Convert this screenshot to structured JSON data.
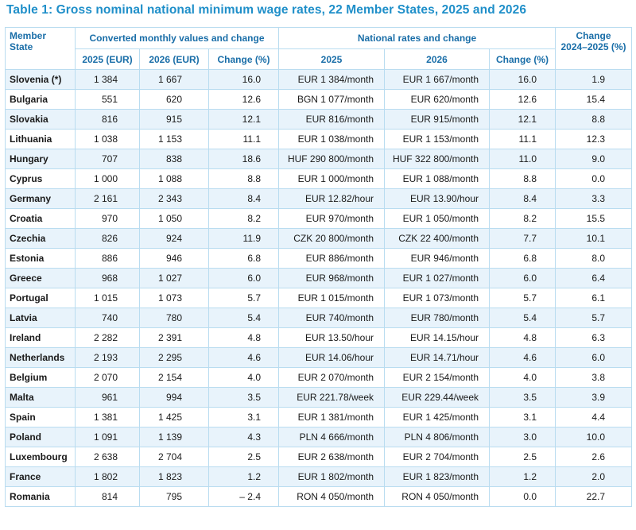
{
  "title": "Table 1: Gross nominal national minimum wage rates, 22 Member States, 2025 and 2026",
  "headers": {
    "member_state": "Member\nState",
    "group_converted": "Converted monthly values and change",
    "group_national": "National rates and change",
    "change_2024_2025": "Change\n2024–2025 (%)",
    "sub": [
      "2025 (EUR)",
      "2026 (EUR)",
      "Change (%)",
      "2025",
      "2026",
      "Change (%)"
    ]
  },
  "rows": [
    [
      "Slovenia (*)",
      "1 384",
      "1 667",
      "16.0",
      "EUR 1 384/month",
      "EUR 1 667/month",
      "16.0",
      "1.9"
    ],
    [
      "Bulgaria",
      "551",
      "620",
      "12.6",
      "BGN 1 077/month",
      "EUR 620/month",
      "12.6",
      "15.4"
    ],
    [
      "Slovakia",
      "816",
      "915",
      "12.1",
      "EUR 816/month",
      "EUR 915/month",
      "12.1",
      "8.8"
    ],
    [
      "Lithuania",
      "1 038",
      "1 153",
      "11.1",
      "EUR 1 038/month",
      "EUR 1 153/month",
      "11.1",
      "12.3"
    ],
    [
      "Hungary",
      "707",
      "838",
      "18.6",
      "HUF 290 800/month",
      "HUF 322 800/month",
      "11.0",
      "9.0"
    ],
    [
      "Cyprus",
      "1 000",
      "1 088",
      "8.8",
      "EUR 1 000/month",
      "EUR 1 088/month",
      "8.8",
      "0.0"
    ],
    [
      "Germany",
      "2 161",
      "2 343",
      "8.4",
      "EUR 12.82/hour",
      "EUR 13.90/hour",
      "8.4",
      "3.3"
    ],
    [
      "Croatia",
      "970",
      "1 050",
      "8.2",
      "EUR 970/month",
      "EUR 1 050/month",
      "8.2",
      "15.5"
    ],
    [
      "Czechia",
      "826",
      "924",
      "11.9",
      "CZK 20 800/month",
      "CZK 22 400/month",
      "7.7",
      "10.1"
    ],
    [
      "Estonia",
      "886",
      "946",
      "6.8",
      "EUR 886/month",
      "EUR 946/month",
      "6.8",
      "8.0"
    ],
    [
      "Greece",
      "968",
      "1 027",
      "6.0",
      "EUR 968/month",
      "EUR 1 027/month",
      "6.0",
      "6.4"
    ],
    [
      "Portugal",
      "1 015",
      "1 073",
      "5.7",
      "EUR 1 015/month",
      "EUR 1 073/month",
      "5.7",
      "6.1"
    ],
    [
      "Latvia",
      "740",
      "780",
      "5.4",
      "EUR 740/month",
      "EUR 780/month",
      "5.4",
      "5.7"
    ],
    [
      "Ireland",
      "2 282",
      "2 391",
      "4.8",
      "EUR 13.50/hour",
      "EUR 14.15/hour",
      "4.8",
      "6.3"
    ],
    [
      "Netherlands",
      "2 193",
      "2 295",
      "4.6",
      "EUR 14.06/hour",
      "EUR 14.71/hour",
      "4.6",
      "6.0"
    ],
    [
      "Belgium",
      "2 070",
      "2 154",
      "4.0",
      "EUR 2 070/month",
      "EUR 2 154/month",
      "4.0",
      "3.8"
    ],
    [
      "Malta",
      "961",
      "994",
      "3.5",
      "EUR 221.78/week",
      "EUR 229.44/week",
      "3.5",
      "3.9"
    ],
    [
      "Spain",
      "1 381",
      "1 425",
      "3.1",
      "EUR 1 381/month",
      "EUR 1 425/month",
      "3.1",
      "4.4"
    ],
    [
      "Poland",
      "1 091",
      "1 139",
      "4.3",
      "PLN 4 666/month",
      "PLN 4 806/month",
      "3.0",
      "10.0"
    ],
    [
      "Luxembourg",
      "2 638",
      "2 704",
      "2.5",
      "EUR 2 638/month",
      "EUR 2 704/month",
      "2.5",
      "2.6"
    ],
    [
      "France",
      "1 802",
      "1 823",
      "1.2",
      "EUR 1 802/month",
      "EUR 1 823/month",
      "1.2",
      "2.0"
    ],
    [
      "Romania",
      "814",
      "795",
      "– 2.4",
      "RON 4 050/month",
      "RON 4 050/month",
      "0.0",
      "22.7"
    ]
  ],
  "colors": {
    "title": "#1f8fc9",
    "header_text": "#1a6ea8",
    "row_band": "#e8f3fb",
    "border": "#b9dcf0"
  }
}
